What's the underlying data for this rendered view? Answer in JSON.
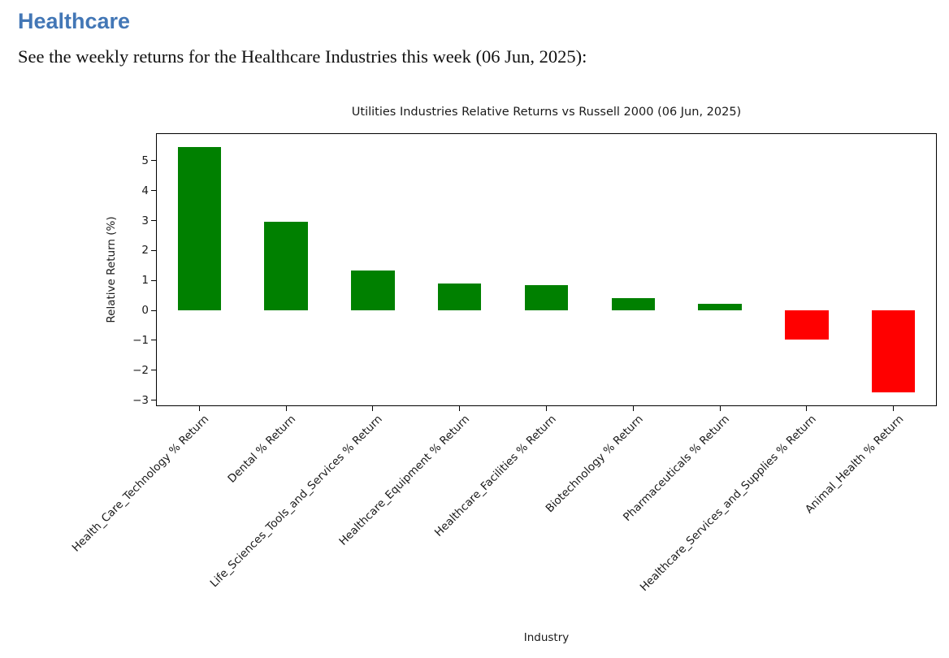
{
  "header": {
    "title": "Healthcare",
    "subtitle": "See the weekly returns for the Healthcare Industries this week (06 Jun, 2025):",
    "accent_color": "#4377b6"
  },
  "chart_data": {
    "type": "bar",
    "title": "Utilities Industries Relative Returns vs Russell 2000 (06 Jun, 2025)",
    "xlabel": "Industry",
    "ylabel": "Relative Return (%)",
    "categories": [
      "Health_Care_Technology % Return",
      "Dental % Return",
      "Life_Sciences_Tools_and_Services % Return",
      "Healthcare_Equipment % Return",
      "Healthcare_Facilities % Return",
      "Biotechnology % Return",
      "Pharmaceuticals % Return",
      "Healthcare_Services_and_Supplies % Return",
      "Animal_Health % Return"
    ],
    "values": [
      5.45,
      2.97,
      1.33,
      0.9,
      0.85,
      0.42,
      0.21,
      -0.97,
      -2.73
    ],
    "ylim": [
      -3.2,
      5.92
    ],
    "yticks": [
      -3,
      -2,
      -1,
      0,
      1,
      2,
      3,
      4,
      5
    ],
    "grid": false,
    "legend": "none",
    "positive_color": "#008000",
    "negative_color": "#ff0000",
    "bar_width_fraction": 0.5,
    "x_label_rotation_deg": 45
  }
}
